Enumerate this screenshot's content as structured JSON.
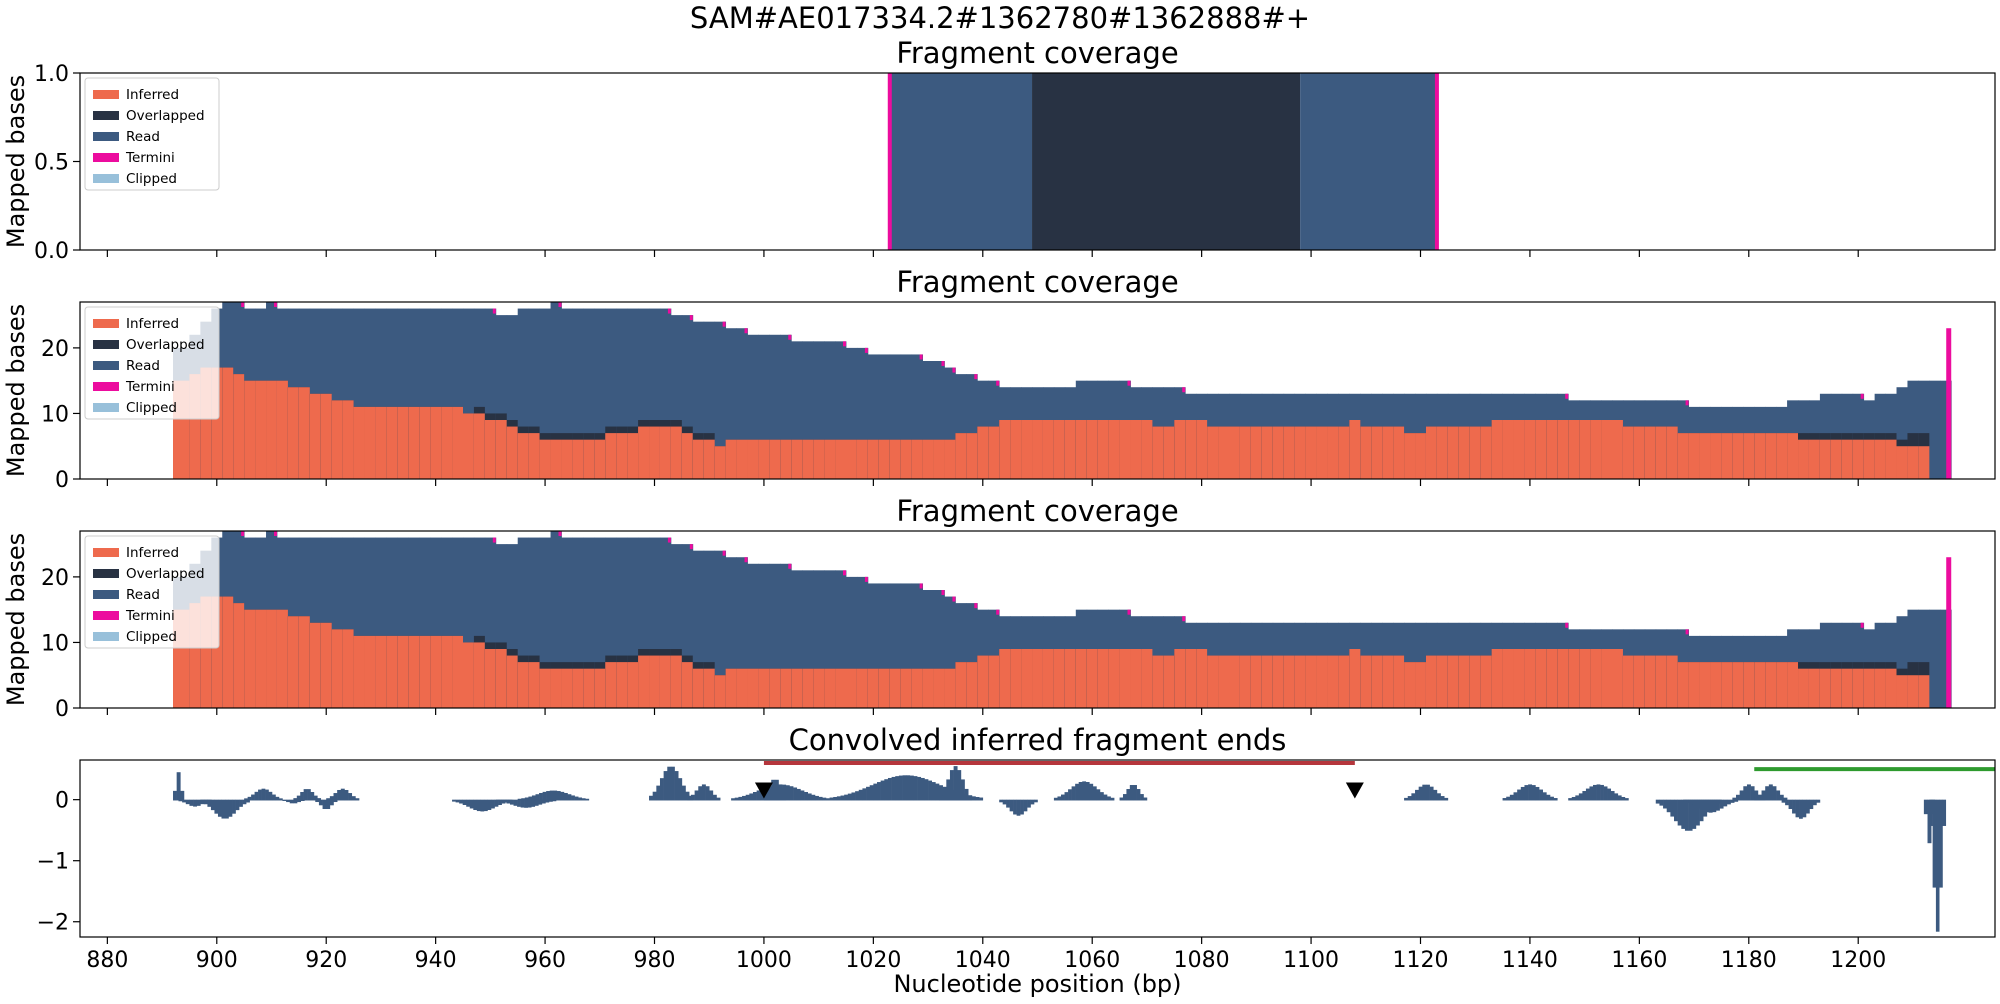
{
  "title": "SAM#AE017334.2#1362780#1362888#+",
  "colors": {
    "inferred": "#EE6A4D",
    "overlapped": "#283243",
    "read": "#3C5A80",
    "termini": "#EC0C9E",
    "clipped": "#98C0DA",
    "red_bar": "#B5363C",
    "green_bar": "#2E9A2E",
    "marker": "#000000"
  },
  "legend": [
    {
      "key": "inferred",
      "label": "Inferred"
    },
    {
      "key": "overlapped",
      "label": "Overlapped"
    },
    {
      "key": "read",
      "label": "Read"
    },
    {
      "key": "termini",
      "label": "Termini"
    },
    {
      "key": "clipped",
      "label": "Clipped"
    }
  ],
  "chart_data": [
    {
      "type": "area",
      "title": "Fragment coverage",
      "ylabel": "Mapped bases",
      "xlim": [
        875,
        1225
      ],
      "ylim": [
        0,
        1
      ],
      "yticks": [
        0.0,
        0.5,
        1.0
      ],
      "ytick_labels": [
        "0.0",
        "0.5",
        "1.0"
      ],
      "legend_position": "upper left",
      "segments": [
        {
          "x0": 1023,
          "x1": 1049,
          "read": 1,
          "overlapped": 0
        },
        {
          "x0": 1049,
          "x1": 1098,
          "read": 0,
          "overlapped": 1
        },
        {
          "x0": 1098,
          "x1": 1123,
          "read": 1,
          "overlapped": 0
        }
      ],
      "termini": [
        {
          "x": 1023,
          "value": 1
        },
        {
          "x": 1123,
          "value": 1
        }
      ]
    },
    {
      "type": "area",
      "title": "Fragment coverage",
      "ylabel": "Mapped bases",
      "xlim": [
        875,
        1225
      ],
      "ylim": [
        0,
        27
      ],
      "yticks": [
        0,
        10,
        20
      ],
      "ytick_labels": [
        "0",
        "10",
        "20"
      ],
      "legend_position": "upper left",
      "x": [
        892,
        895,
        897,
        899,
        901,
        903,
        905,
        907,
        909,
        911,
        913,
        915,
        917,
        919,
        921,
        923,
        925,
        927,
        929,
        931,
        933,
        935,
        937,
        939,
        941,
        943,
        945,
        947,
        949,
        951,
        953,
        955,
        957,
        959,
        961,
        963,
        965,
        967,
        969,
        971,
        973,
        975,
        977,
        979,
        981,
        983,
        985,
        987,
        989,
        991,
        993,
        995,
        997,
        999,
        1001,
        1003,
        1005,
        1007,
        1009,
        1011,
        1013,
        1015,
        1017,
        1019,
        1021,
        1023,
        1025,
        1027,
        1029,
        1031,
        1033,
        1035,
        1037,
        1039,
        1041,
        1043,
        1045,
        1047,
        1049,
        1051,
        1053,
        1055,
        1057,
        1059,
        1061,
        1063,
        1065,
        1067,
        1069,
        1071,
        1073,
        1075,
        1077,
        1079,
        1081,
        1083,
        1085,
        1087,
        1089,
        1091,
        1093,
        1095,
        1097,
        1099,
        1101,
        1103,
        1105,
        1107,
        1109,
        1111,
        1113,
        1115,
        1117,
        1119,
        1121,
        1123,
        1125,
        1127,
        1129,
        1131,
        1133,
        1135,
        1137,
        1139,
        1141,
        1143,
        1145,
        1147,
        1149,
        1151,
        1153,
        1155,
        1157,
        1159,
        1161,
        1163,
        1165,
        1167,
        1169,
        1171,
        1173,
        1175,
        1177,
        1179,
        1181,
        1183,
        1185,
        1187,
        1189,
        1191,
        1193,
        1195,
        1197,
        1199,
        1201,
        1203,
        1205,
        1207,
        1209,
        1211,
        1213,
        1215
      ],
      "inferred": [
        15,
        16,
        17,
        17,
        17,
        16,
        15,
        15,
        15,
        15,
        14,
        14,
        13,
        13,
        12,
        12,
        11,
        11,
        11,
        11,
        11,
        11,
        11,
        11,
        11,
        11,
        10,
        10,
        9,
        9,
        8,
        7,
        7,
        6,
        6,
        6,
        6,
        6,
        6,
        7,
        7,
        7,
        8,
        8,
        8,
        8,
        7,
        6,
        6,
        5,
        6,
        6,
        6,
        6,
        6,
        6,
        6,
        6,
        6,
        6,
        6,
        6,
        6,
        6,
        6,
        6,
        6,
        6,
        6,
        6,
        6,
        7,
        7,
        8,
        8,
        9,
        9,
        9,
        9,
        9,
        9,
        9,
        9,
        9,
        9,
        9,
        9,
        9,
        9,
        8,
        8,
        9,
        9,
        9,
        8,
        8,
        8,
        8,
        8,
        8,
        8,
        8,
        8,
        8,
        8,
        8,
        8,
        9,
        8,
        8,
        8,
        8,
        7,
        7,
        8,
        8,
        8,
        8,
        8,
        8,
        9,
        9,
        9,
        9,
        9,
        9,
        9,
        9,
        9,
        9,
        9,
        9,
        8,
        8,
        8,
        8,
        8,
        7,
        7,
        7,
        7,
        7,
        7,
        7,
        7,
        7,
        7,
        7,
        6,
        6,
        6,
        6,
        6,
        6,
        6,
        6,
        6,
        5,
        5,
        5
      ],
      "overlapped": [
        0,
        0,
        0,
        0,
        0,
        0,
        0,
        0,
        0,
        0,
        0,
        0,
        0,
        0,
        0,
        0,
        0,
        0,
        0,
        0,
        0,
        0,
        0,
        0,
        0,
        0,
        0,
        1,
        1,
        1,
        1,
        1,
        1,
        1,
        1,
        1,
        1,
        1,
        1,
        1,
        1,
        1,
        1,
        1,
        1,
        1,
        1,
        1,
        1,
        0,
        0,
        0,
        0,
        0,
        0,
        0,
        0,
        0,
        0,
        0,
        0,
        0,
        0,
        0,
        0,
        0,
        0,
        0,
        0,
        0,
        0,
        0,
        0,
        0,
        0,
        0,
        0,
        0,
        0,
        0,
        0,
        0,
        0,
        0,
        0,
        0,
        0,
        0,
        0,
        0,
        0,
        0,
        0,
        0,
        0,
        0,
        0,
        0,
        0,
        0,
        0,
        0,
        0,
        0,
        0,
        0,
        0,
        0,
        0,
        0,
        0,
        0,
        0,
        0,
        0,
        0,
        0,
        0,
        0,
        0,
        0,
        0,
        0,
        0,
        0,
        0,
        0,
        0,
        0,
        0,
        0,
        0,
        0,
        0,
        0,
        0,
        0,
        0,
        0,
        0,
        0,
        0,
        0,
        0,
        0,
        0,
        0,
        0,
        1,
        1,
        1,
        1,
        1,
        1,
        1,
        1,
        1,
        1,
        2,
        2
      ],
      "total": [
        20,
        22,
        24,
        26,
        27,
        27,
        26,
        26,
        27,
        26,
        26,
        26,
        26,
        26,
        26,
        26,
        26,
        26,
        26,
        26,
        26,
        26,
        26,
        26,
        26,
        26,
        26,
        26,
        26,
        25,
        25,
        26,
        26,
        26,
        27,
        26,
        26,
        26,
        26,
        26,
        26,
        26,
        26,
        26,
        26,
        25,
        25,
        24,
        24,
        24,
        23,
        23,
        22,
        22,
        22,
        22,
        21,
        21,
        21,
        21,
        21,
        20,
        20,
        19,
        19,
        19,
        19,
        19,
        18,
        18,
        17,
        16,
        16,
        15,
        15,
        14,
        14,
        14,
        14,
        14,
        14,
        14,
        15,
        15,
        15,
        15,
        15,
        14,
        14,
        14,
        14,
        14,
        13,
        13,
        13,
        13,
        13,
        13,
        13,
        13,
        13,
        13,
        13,
        13,
        13,
        13,
        13,
        13,
        13,
        13,
        13,
        13,
        13,
        13,
        13,
        13,
        13,
        13,
        13,
        13,
        13,
        13,
        13,
        13,
        13,
        13,
        13,
        12,
        12,
        12,
        12,
        12,
        12,
        12,
        12,
        12,
        12,
        12,
        11,
        11,
        11,
        11,
        11,
        11,
        11,
        11,
        11,
        12,
        12,
        12,
        13,
        13,
        13,
        13,
        12,
        13,
        13,
        14,
        15,
        15,
        15,
        15,
        15,
        15,
        15,
        15,
        15,
        15
      ]
    },
    {
      "type": "area",
      "title": "Fragment coverage",
      "ylabel": "Mapped bases",
      "xlim": [
        875,
        1225
      ],
      "ylim": [
        0,
        27
      ],
      "yticks": [
        0,
        10,
        20
      ],
      "ytick_labels": [
        "0",
        "10",
        "20"
      ],
      "legend_position": "upper left",
      "inferred_same_as_previous": true
    },
    {
      "type": "bar",
      "title": "Convolved inferred fragment ends",
      "xlabel": "Nucleotide position (bp)",
      "xlim": [
        875,
        1225
      ],
      "ylim": [
        -2.25,
        0.65
      ],
      "yticks": [
        0,
        -1,
        -2
      ],
      "ytick_labels": [
        "0",
        "−1",
        "−2"
      ],
      "xticks": [
        880,
        900,
        920,
        940,
        960,
        980,
        1000,
        1020,
        1040,
        1060,
        1080,
        1100,
        1120,
        1140,
        1160,
        1180,
        1200
      ],
      "red_bar": {
        "x0": 1000,
        "x1": 1108,
        "y": 0.6
      },
      "green_bar": {
        "x0": 1181,
        "x1": 1225,
        "y": 0.5
      },
      "markers": [
        {
          "x": 1000,
          "y": 0.15
        },
        {
          "x": 1108,
          "y": 0.15
        }
      ]
    }
  ]
}
